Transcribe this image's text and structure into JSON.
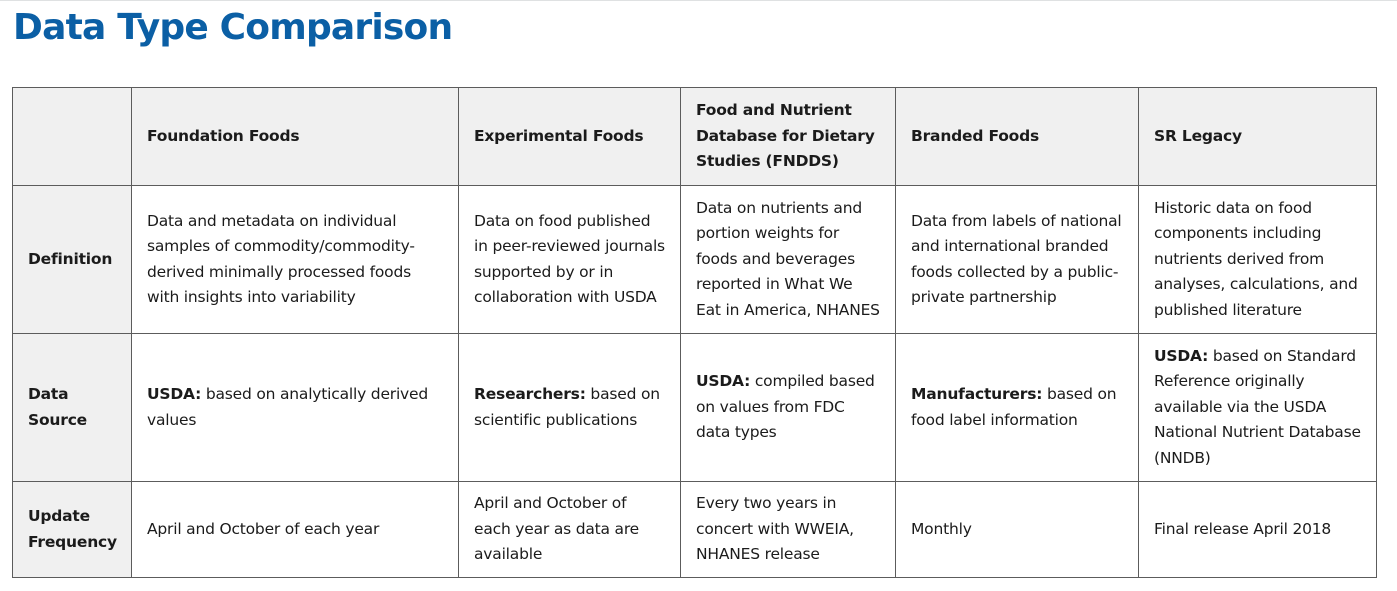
{
  "page_title": "Data Type Comparison",
  "table": {
    "header": {
      "corner": "",
      "columns": [
        "Foundation Foods",
        "Experimental Foods",
        "Food and Nutrient Database for Dietary Studies (FNDDS)",
        "Branded Foods",
        "SR Legacy"
      ]
    },
    "rows": [
      {
        "label": "Definition",
        "cells": [
          "Data and metadata on individual samples of commodity/commodity-derived minimally processed foods with insights into variability",
          "Data on food published in peer-reviewed journals supported by or in collaboration with USDA",
          "Data on nutrients and portion weights for foods and beverages reported in What We Eat in America, NHANES",
          "Data from labels of national and international branded foods collected by a public-private partnership",
          "Historic data on food components including nutrients derived from analyses, calculations, and published literature"
        ]
      },
      {
        "label": "Data Source",
        "cells": [
          {
            "strong": "USDA:",
            "text": " based on analytically derived values"
          },
          {
            "strong": "Researchers:",
            "text": " based on scientific publications"
          },
          {
            "strong": "USDA:",
            "text": " compiled based on values from FDC data types"
          },
          {
            "strong": "Manufacturers:",
            "text": " based on food label information"
          },
          {
            "strong": "USDA:",
            "text": " based on Standard Reference originally available via the USDA National Nutrient Database (NNDB)"
          }
        ]
      },
      {
        "label": "Update Frequency",
        "cells": [
          "April and October of each year",
          "April and October of each year as data are available",
          "Every two years in concert with WWEIA, NHANES release",
          "Monthly",
          "Final release April 2018"
        ]
      }
    ]
  }
}
